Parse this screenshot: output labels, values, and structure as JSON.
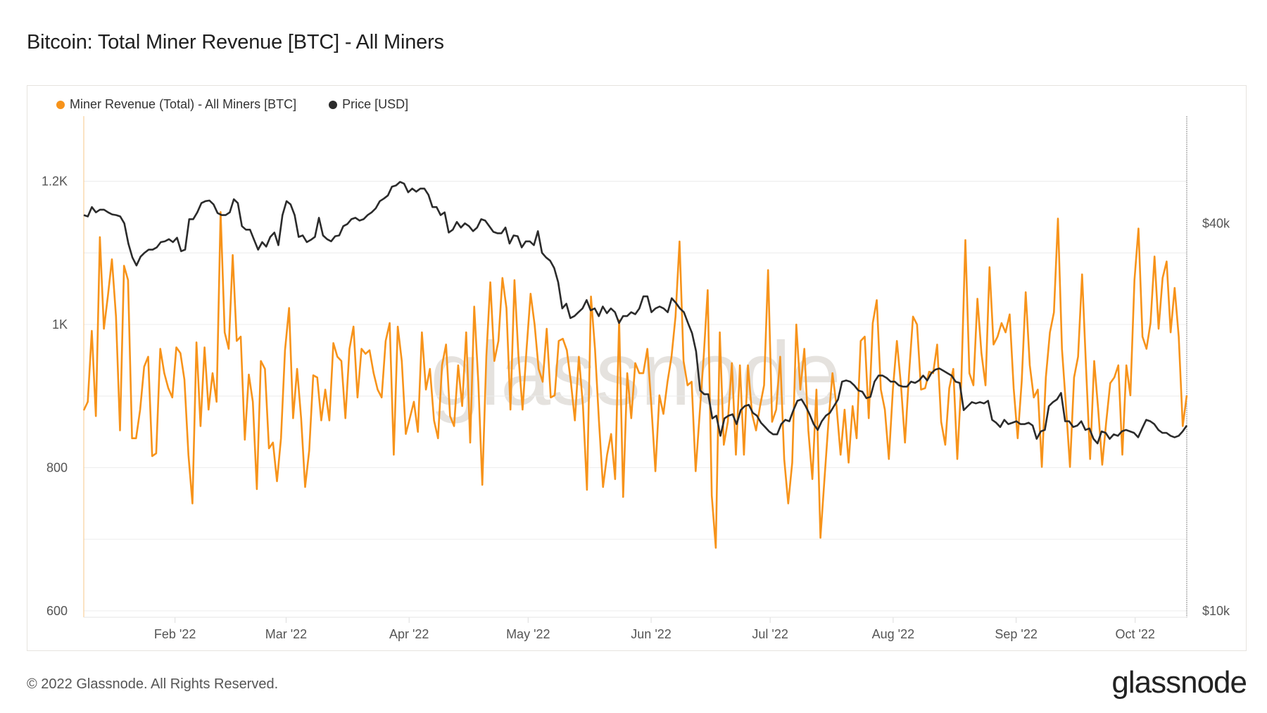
{
  "title": "Bitcoin: Total Miner Revenue [BTC] - All Miners",
  "footer": {
    "copyright": "© 2022 Glassnode. All Rights Reserved.",
    "logo": "glassnode"
  },
  "watermark": "glassnode",
  "colors": {
    "revenue": "#f7931a",
    "price": "#2b2b2b",
    "grid": "#ececec"
  },
  "chart_data": {
    "type": "line",
    "title": "Bitcoin: Total Miner Revenue [BTC] - All Miners",
    "x_start": "2022-01-09",
    "x_days": 278,
    "legend_position": "top-left",
    "grid": true,
    "x_ticks": [
      {
        "label": "Feb '22",
        "day": 23
      },
      {
        "label": "Mar '22",
        "day": 51
      },
      {
        "label": "Apr '22",
        "day": 82
      },
      {
        "label": "May '22",
        "day": 112
      },
      {
        "label": "Jun '22",
        "day": 143
      },
      {
        "label": "Jul '22",
        "day": 173
      },
      {
        "label": "Aug '22",
        "day": 204
      },
      {
        "label": "Sep '22",
        "day": 235
      },
      {
        "label": "Oct '22",
        "day": 265
      }
    ],
    "y_left": {
      "label": "Miner Revenue [BTC]",
      "range": [
        591,
        1291
      ],
      "grid_step": 100,
      "ticks": [
        {
          "label": "600",
          "value": 600
        },
        {
          "label": "800",
          "value": 800
        },
        {
          "label": "1K",
          "value": 1000
        },
        {
          "label": "1.2K",
          "value": 1200
        }
      ]
    },
    "y_right": {
      "label": "Price [USD]",
      "scale": "log",
      "range": [
        9.77,
        58.7
      ],
      "ticks": [
        {
          "label": "$10k",
          "value": 10
        },
        {
          "label": "$40k",
          "value": 40
        }
      ]
    },
    "series": [
      {
        "name": "Miner Revenue (Total) - All Miners [BTC]",
        "axis": "left",
        "unit": "BTC",
        "values": [
          880,
          892,
          991,
          872,
          1122,
          994,
          1040,
          1091,
          1011,
          852,
          1082,
          1062,
          841,
          841,
          881,
          941,
          955,
          816,
          820,
          966,
          932,
          911,
          898,
          968,
          960,
          923,
          818,
          750,
          975,
          858,
          968,
          881,
          932,
          892,
          1157,
          989,
          966,
          1097,
          977,
          983,
          839,
          930,
          892,
          770,
          949,
          938,
          827,
          835,
          781,
          841,
          964,
          1023,
          869,
          938,
          869,
          773,
          824,
          929,
          926,
          866,
          909,
          866,
          974,
          955,
          949,
          869,
          966,
          997,
          898,
          966,
          959,
          964,
          932,
          909,
          898,
          977,
          1002,
          818,
          997,
          949,
          847,
          869,
          892,
          850,
          989,
          909,
          938,
          866,
          841,
          943,
          972,
          872,
          858,
          943,
          886,
          989,
          835,
          1025,
          920,
          776,
          955,
          1059,
          949,
          977,
          1065,
          1023,
          881,
          1062,
          955,
          881,
          966,
          1043,
          1000,
          938,
          920,
          994,
          898,
          901,
          977,
          980,
          964,
          920,
          866,
          955,
          886,
          769,
          1039,
          966,
          864,
          773,
          818,
          847,
          784,
          1006,
          759,
          932,
          869,
          946,
          932,
          932,
          966,
          886,
          795,
          901,
          875,
          920,
          955,
          1011,
          1116,
          949,
          915,
          920,
          795,
          875,
          955,
          1048,
          761,
          688,
          989,
          832,
          864,
          946,
          818,
          943,
          818,
          943,
          875,
          852,
          886,
          915,
          1076,
          864,
          881,
          955,
          812,
          750,
          807,
          1000,
          909,
          966,
          852,
          784,
          909,
          702,
          784,
          864,
          932,
          886,
          818,
          881,
          807,
          886,
          841,
          977,
          983,
          869,
          1002,
          1034,
          909,
          881,
          812,
          909,
          977,
          915,
          835,
          930,
          1011,
          1000,
          909,
          911,
          934,
          932,
          972,
          864,
          832,
          911,
          938,
          812,
          920,
          1118,
          932,
          915,
          1036,
          960,
          915,
          1080,
          972,
          983,
          1002,
          989,
          1014,
          911,
          841,
          920,
          1045,
          943,
          898,
          909,
          801,
          926,
          989,
          1017,
          1148,
          966,
          886,
          801,
          926,
          955,
          1070,
          938,
          812,
          949,
          881,
          804,
          864,
          918,
          926,
          943,
          818,
          943,
          901,
          1062,
          1134,
          983,
          966,
          1002,
          1095,
          994,
          1065,
          1088,
          989,
          1051,
          983,
          858,
          901
        ]
      },
      {
        "name": "Price [USD]",
        "axis": "right",
        "unit": "USD thousands",
        "values": [
          41.2,
          41.0,
          42.4,
          41.6,
          42.0,
          42.0,
          41.6,
          41.3,
          41.2,
          41.0,
          40.0,
          37.2,
          35.4,
          34.4,
          35.5,
          36.0,
          36.4,
          36.4,
          36.7,
          37.4,
          37.5,
          37.8,
          37.4,
          38.0,
          36.2,
          36.4,
          40.6,
          40.6,
          41.6,
          43.0,
          43.3,
          43.4,
          42.8,
          41.5,
          41.2,
          41.2,
          41.6,
          43.6,
          43.0,
          39.6,
          39.1,
          39.1,
          37.7,
          36.4,
          37.4,
          36.8,
          38.1,
          38.7,
          37.0,
          41.2,
          43.3,
          42.8,
          41.2,
          38.1,
          38.3,
          37.4,
          37.7,
          38.1,
          40.8,
          38.3,
          37.8,
          37.5,
          38.2,
          38.3,
          39.6,
          39.9,
          40.6,
          40.8,
          40.4,
          40.6,
          41.2,
          41.6,
          42.2,
          43.3,
          43.7,
          44.2,
          45.6,
          45.8,
          46.4,
          46.1,
          44.7,
          45.3,
          44.8,
          45.3,
          45.3,
          44.3,
          42.4,
          42.4,
          41.2,
          41.6,
          38.7,
          39.1,
          40.2,
          39.4,
          40.0,
          39.6,
          38.9,
          39.4,
          40.6,
          40.4,
          39.6,
          38.8,
          38.6,
          38.6,
          39.4,
          37.2,
          38.3,
          38.2,
          36.7,
          37.5,
          37.5,
          37.0,
          38.9,
          36.0,
          35.4,
          35.0,
          34.1,
          32.4,
          29.5,
          30.0,
          28.5,
          28.7,
          29.1,
          29.5,
          30.4,
          29.3,
          29.5,
          28.7,
          29.7,
          29.0,
          29.5,
          29.1,
          28.0,
          28.7,
          28.7,
          29.1,
          28.9,
          29.5,
          30.8,
          30.8,
          29.1,
          29.5,
          29.7,
          29.5,
          29.1,
          30.6,
          30.1,
          29.5,
          29.1,
          28.0,
          27.0,
          25.3,
          22.0,
          21.7,
          21.7,
          19.9,
          20.1,
          18.7,
          19.9,
          20.1,
          20.2,
          19.5,
          20.5,
          20.8,
          20.9,
          20.3,
          20.1,
          19.6,
          19.3,
          19.0,
          18.8,
          18.8,
          19.5,
          19.8,
          19.7,
          20.5,
          21.2,
          21.3,
          20.8,
          20.2,
          19.5,
          19.1,
          19.7,
          20.1,
          20.3,
          20.8,
          21.3,
          22.7,
          22.8,
          22.7,
          22.4,
          22.0,
          21.9,
          21.4,
          21.5,
          22.7,
          23.2,
          23.2,
          23.0,
          22.7,
          22.7,
          22.4,
          22.3,
          22.3,
          22.7,
          22.6,
          22.8,
          23.2,
          22.8,
          23.4,
          23.7,
          23.8,
          23.6,
          23.4,
          23.2,
          22.7,
          22.6,
          20.5,
          20.8,
          21.1,
          21.0,
          21.1,
          21.0,
          21.2,
          19.8,
          19.6,
          19.3,
          19.8,
          19.5,
          19.6,
          19.7,
          19.5,
          19.5,
          19.6,
          19.4,
          18.5,
          19.0,
          19.1,
          20.8,
          21.1,
          21.3,
          21.8,
          19.7,
          19.7,
          19.3,
          19.4,
          19.7,
          19.1,
          19.2,
          18.5,
          18.2,
          19.0,
          18.9,
          18.5,
          18.8,
          18.7,
          19.0,
          19.1,
          19.0,
          18.9,
          18.6,
          19.2,
          19.8,
          19.7,
          19.5,
          19.1,
          18.9,
          18.9,
          18.7,
          18.6,
          18.7,
          19.0,
          19.4
        ]
      }
    ]
  }
}
